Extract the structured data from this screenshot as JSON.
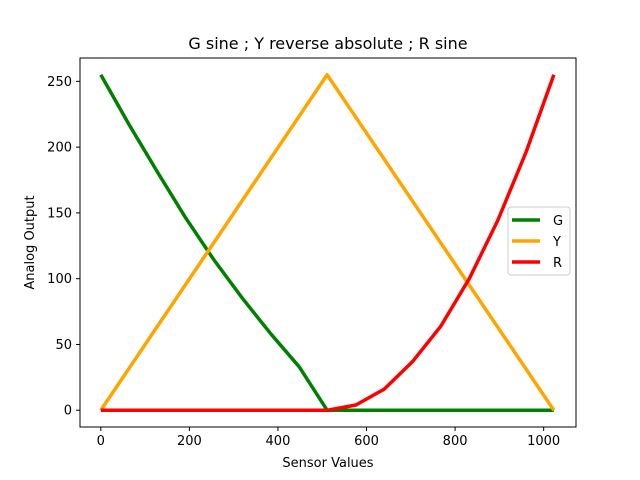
{
  "chart_data": {
    "type": "line",
    "title": "G sine ; Y reverse absolute ; R sine",
    "xlabel": "Sensor Values",
    "ylabel": "Analog Output",
    "xlim": [
      -47,
      1073
    ],
    "ylim": [
      -12.75,
      267.75
    ],
    "x_ticks": [
      0,
      200,
      400,
      600,
      800,
      1000
    ],
    "x_tick_labels": [
      "0",
      "200",
      "400",
      "600",
      "800",
      "1000"
    ],
    "y_ticks": [
      0,
      50,
      100,
      150,
      200,
      250
    ],
    "y_tick_labels": [
      "0",
      "50",
      "100",
      "150",
      "200",
      "250"
    ],
    "grid": false,
    "legend_position": "center-right",
    "series": [
      {
        "name": "G",
        "color": "#008000",
        "x": [
          0,
          64,
          128,
          192,
          256,
          320,
          384,
          448,
          511,
          576,
          640,
          704,
          768,
          832,
          896,
          960,
          1023
        ],
        "y": [
          255,
          217,
          181,
          146,
          114,
          85,
          58,
          33,
          0,
          0,
          0,
          0,
          0,
          0,
          0,
          0,
          0
        ]
      },
      {
        "name": "Y",
        "color": "#FFA500",
        "x": [
          0,
          511,
          1023
        ],
        "y": [
          0,
          255,
          0
        ]
      },
      {
        "name": "R",
        "color": "#FF0000",
        "x": [
          0,
          64,
          128,
          192,
          256,
          320,
          384,
          448,
          512,
          576,
          640,
          704,
          768,
          832,
          896,
          960,
          1023
        ],
        "y": [
          0,
          0,
          0,
          0,
          0,
          0,
          0,
          0,
          0,
          4,
          16,
          37,
          64,
          100,
          144,
          196,
          255
        ]
      }
    ]
  }
}
